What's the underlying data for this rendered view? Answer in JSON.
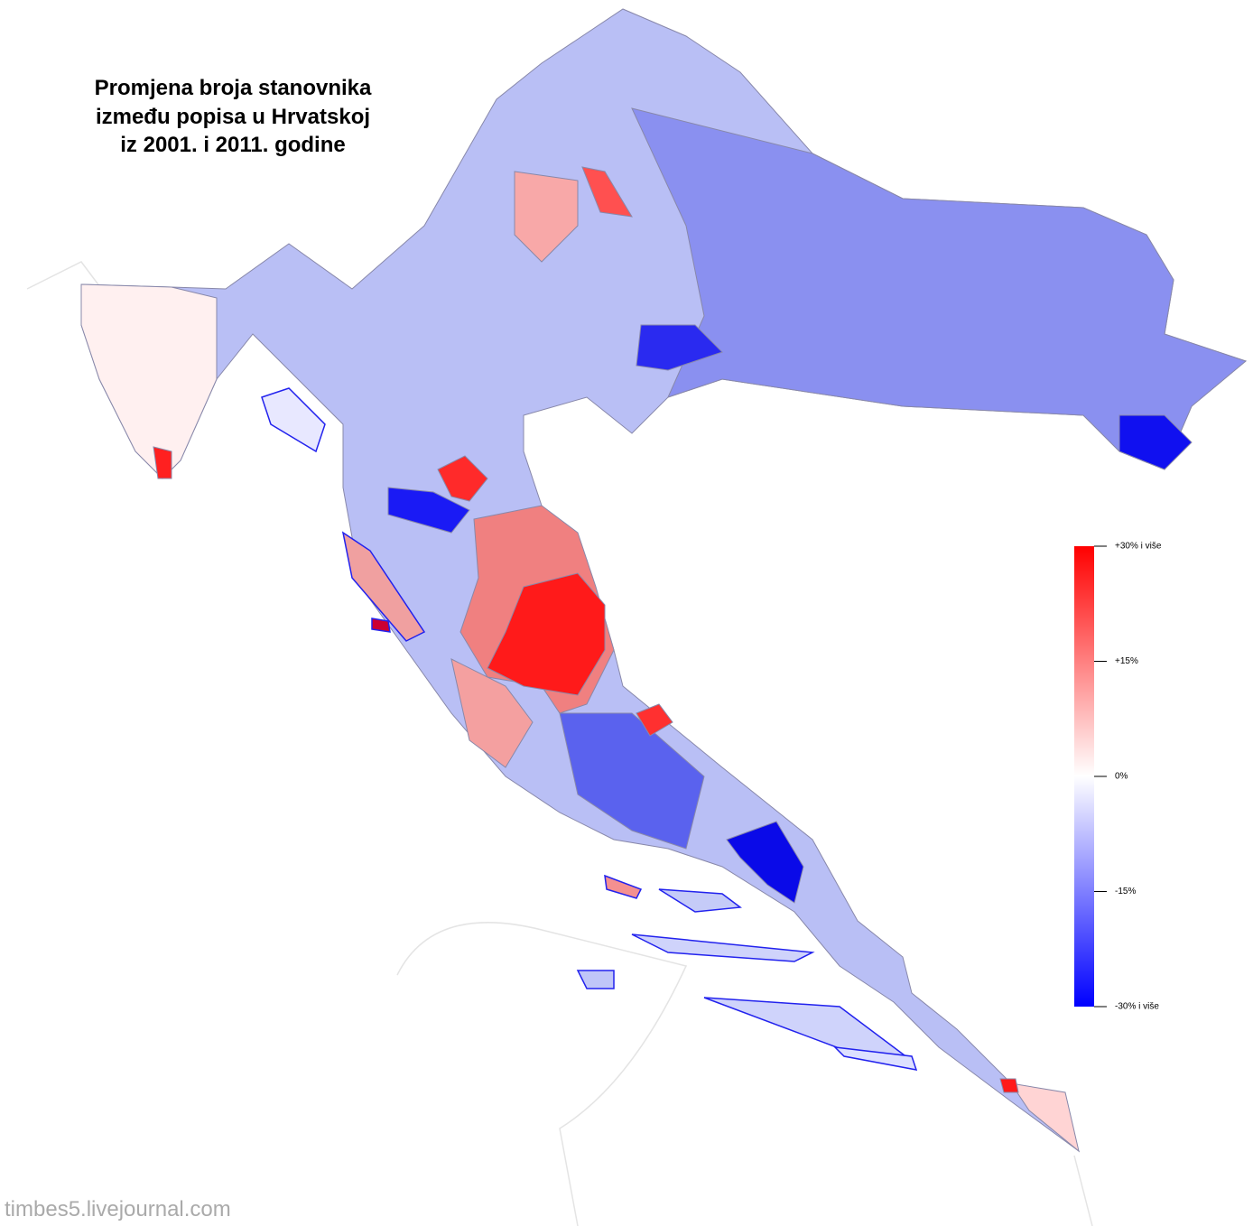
{
  "title": [
    "Promjena broja stanovnika",
    "između popisa u Hrvatskoj",
    "iz 2001. i 2011. godine"
  ],
  "legend": {
    "colors": [
      "#0000ff",
      "#ffffff",
      "#ff0000"
    ],
    "range": [
      -30,
      30
    ],
    "ticks": [
      {
        "value": 30,
        "label": "+30% i više"
      },
      {
        "value": 15,
        "label": "+15%"
      },
      {
        "value": 0,
        "label": "0%"
      },
      {
        "value": -15,
        "label": "-15%"
      },
      {
        "value": -30,
        "label": "-30% i više"
      }
    ]
  },
  "watermark": "timbes5.livejournal.com"
}
